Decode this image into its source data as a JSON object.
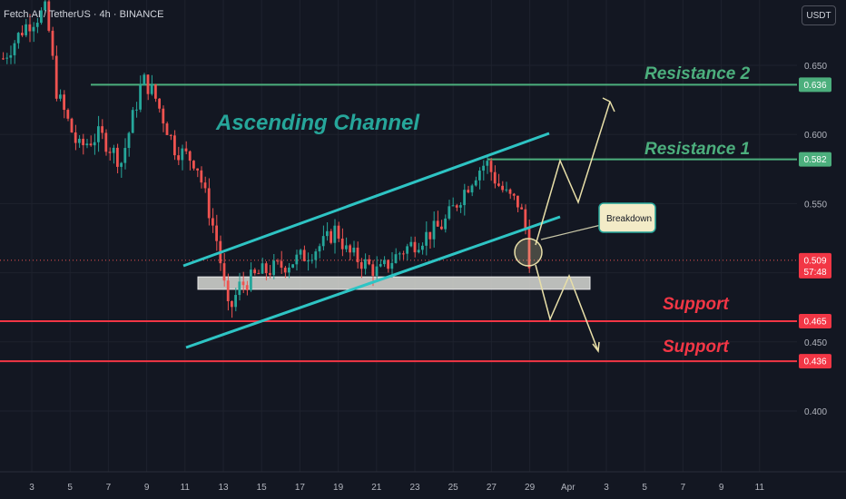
{
  "header": {
    "symbol": "Fetch.AI / TetherUS · 4h · BINANCE",
    "currency": "USDT"
  },
  "colors": {
    "bg": "#131722",
    "up": "#26a69a",
    "down": "#ef5350",
    "channel": "#2ec4c4",
    "resistance": "#4caf7d",
    "support": "#f23645",
    "arrow": "#e8dfa8",
    "grid": "#1e222d"
  },
  "chart_data": {
    "type": "candlestick",
    "ylim": [
      0.38,
      0.685
    ],
    "y_ticks": [
      "0.650",
      "0.600",
      "0.550",
      "0.500",
      "0.450",
      "0.400"
    ],
    "x_ticks": [
      "3",
      "5",
      "7",
      "9",
      "11",
      "13",
      "15",
      "17",
      "19",
      "21",
      "23",
      "25",
      "27",
      "29",
      "Apr",
      "3",
      "5",
      "7",
      "9",
      "11"
    ],
    "price_tags": [
      {
        "label": "0.636",
        "value": 0.636,
        "color": "#4caf7d"
      },
      {
        "label": "0.582",
        "value": 0.582,
        "color": "#4caf7d"
      },
      {
        "label": "0.509",
        "value": 0.509,
        "color": "#f23645",
        "sub": "57:48"
      },
      {
        "label": "0.465",
        "value": 0.465,
        "color": "#f23645"
      },
      {
        "label": "0.436",
        "value": 0.436,
        "color": "#f23645"
      }
    ],
    "annotations": {
      "channel": "Ascending Channel",
      "resistance2": "Resistance 2",
      "resistance1": "Resistance 1",
      "support1": "Support",
      "support2": "Support",
      "breakdown": "Breakdown"
    },
    "levels": {
      "resistance2": 0.636,
      "resistance1": 0.582,
      "support1": 0.465,
      "support2": 0.436,
      "current": 0.509
    },
    "support_zone": [
      0.488,
      0.497
    ],
    "price_path": [
      [
        0,
        0.655
      ],
      [
        2,
        0.678
      ],
      [
        4,
        0.69
      ],
      [
        5,
        0.63
      ],
      [
        7,
        0.59
      ],
      [
        9,
        0.6
      ],
      [
        11,
        0.58
      ],
      [
        13,
        0.64
      ],
      [
        14,
        0.63
      ],
      [
        16,
        0.59
      ],
      [
        18,
        0.58
      ],
      [
        20,
        0.52
      ],
      [
        21,
        0.47
      ],
      [
        22,
        0.49
      ],
      [
        24,
        0.5
      ],
      [
        26,
        0.505
      ],
      [
        28,
        0.512
      ],
      [
        30,
        0.522
      ],
      [
        31,
        0.532
      ],
      [
        32,
        0.515
      ],
      [
        34,
        0.505
      ],
      [
        35,
        0.5
      ],
      [
        37,
        0.515
      ],
      [
        39,
        0.525
      ],
      [
        41,
        0.535
      ],
      [
        43,
        0.56
      ],
      [
        44,
        0.572
      ],
      [
        45,
        0.58
      ],
      [
        46,
        0.565
      ],
      [
        47,
        0.555
      ],
      [
        48,
        0.55
      ],
      [
        48.6,
        0.535
      ],
      [
        49,
        0.51
      ]
    ]
  }
}
